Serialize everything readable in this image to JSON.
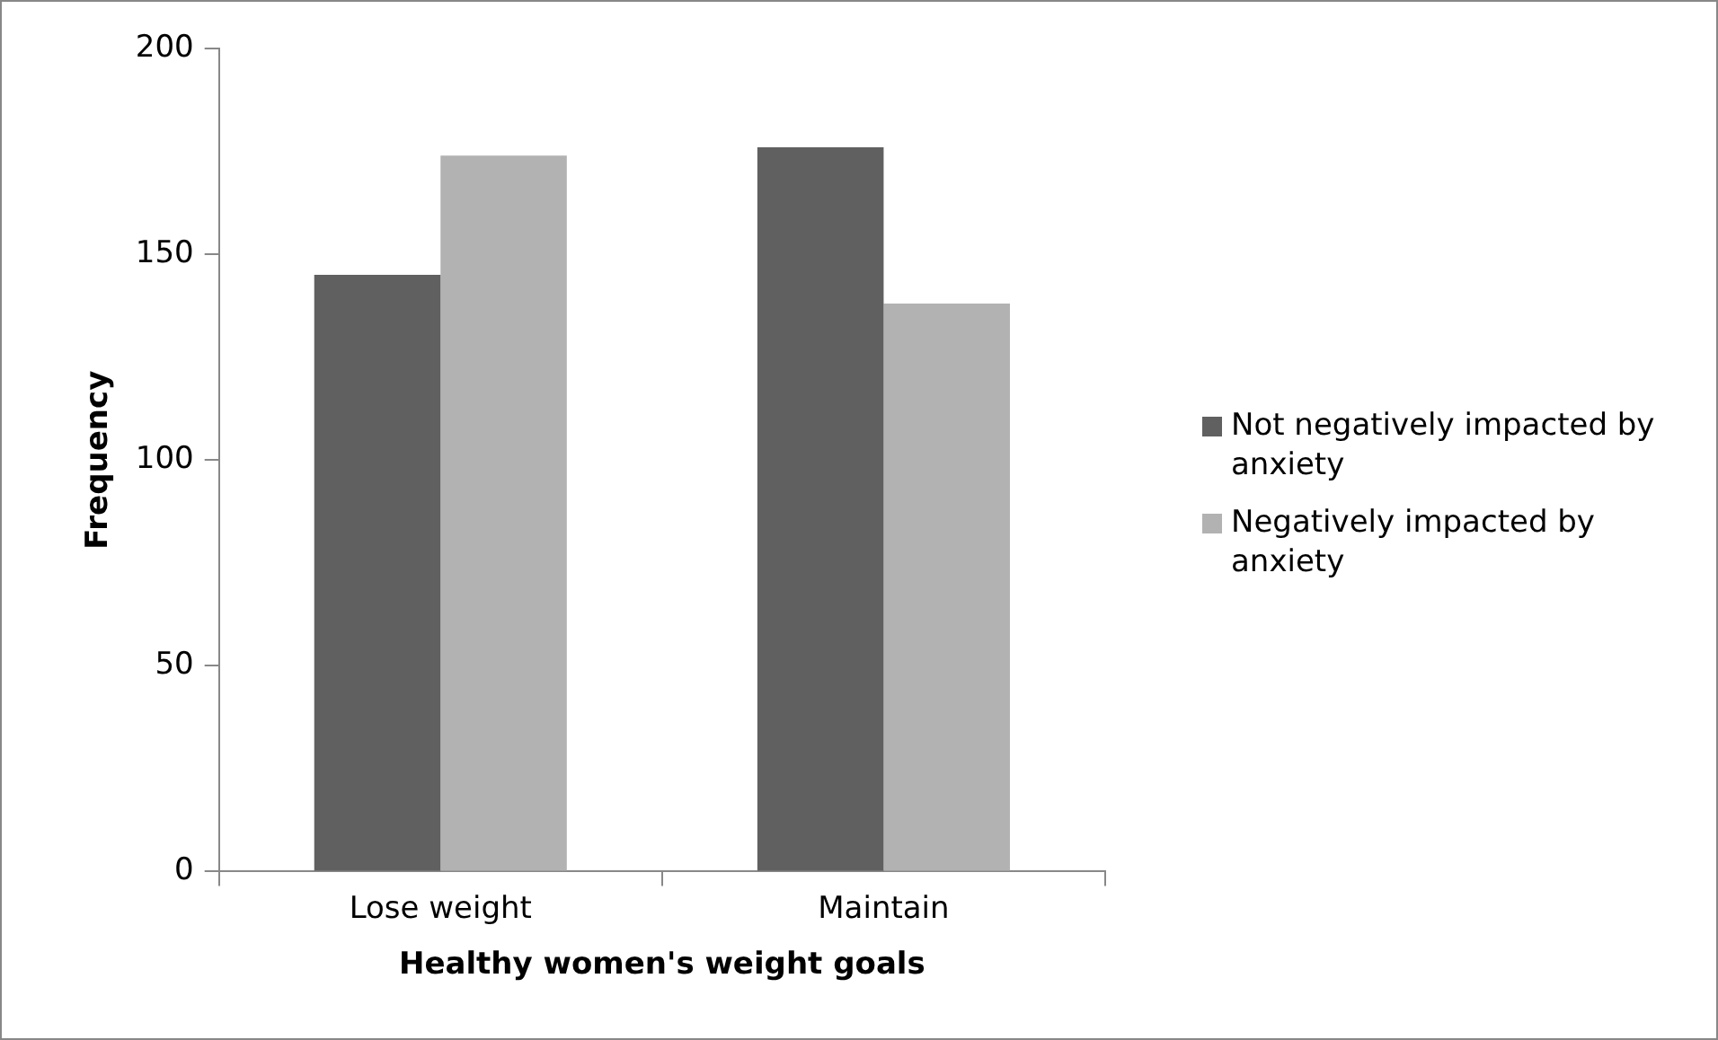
{
  "chart_data": {
    "type": "bar",
    "xlabel": "Healthy women's weight goals",
    "ylabel": "Frequency",
    "categories": [
      "Lose weight",
      "Maintain"
    ],
    "series": [
      {
        "name": "Not negatively impacted by anxiety",
        "color": "#606060",
        "values": [
          145,
          176
        ]
      },
      {
        "name": "Negatively impacted by anxiety",
        "color": "#b2b2b2",
        "values": [
          174,
          138
        ]
      }
    ],
    "ylim": [
      0,
      200
    ],
    "yticks": [
      0,
      50,
      100,
      150,
      200
    ],
    "grid": false,
    "legend": "right"
  }
}
